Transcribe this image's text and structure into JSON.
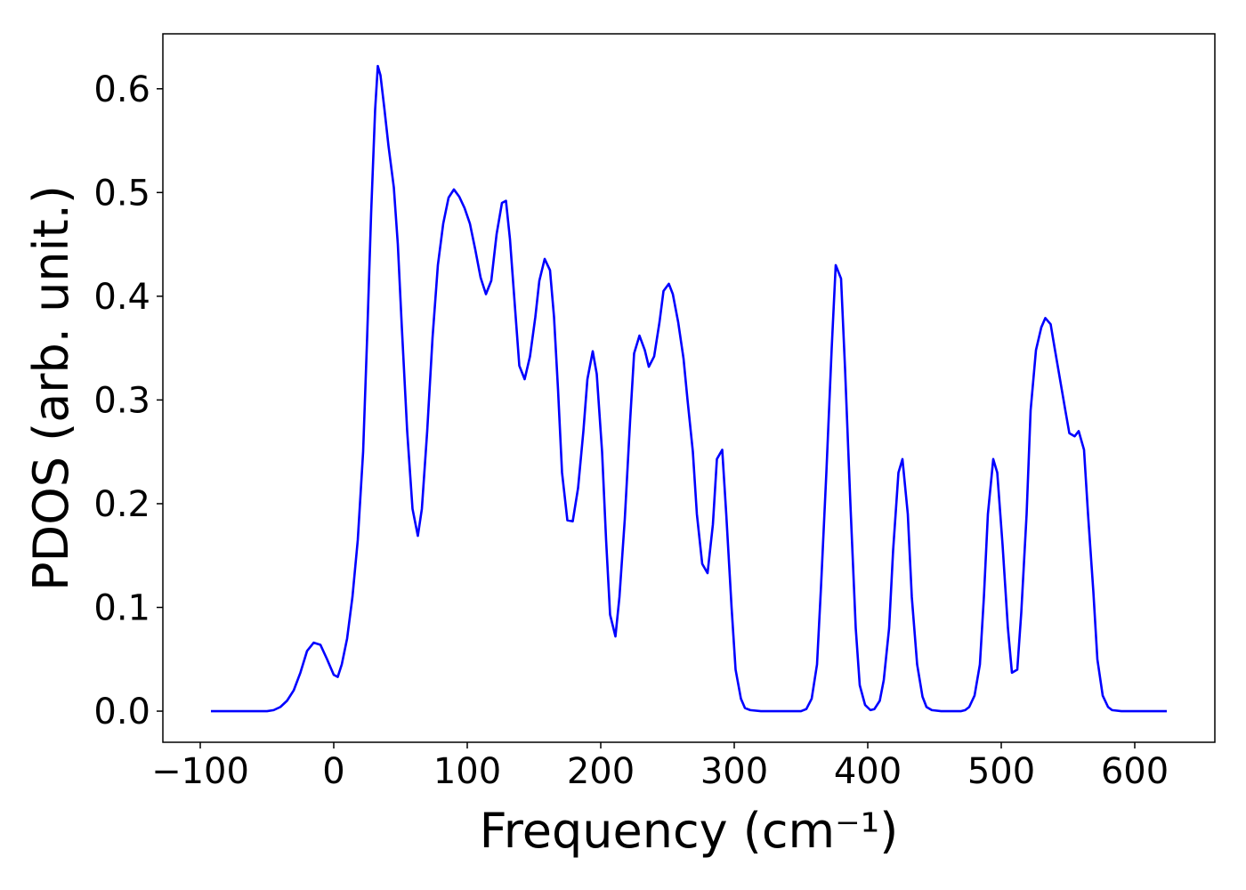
{
  "chart_data": {
    "type": "line",
    "xlabel": "Frequency (cm⁻¹)",
    "ylabel": "PDOS (arb. unit.)",
    "color": "#0000ff",
    "grid": false,
    "xlim": [
      -128,
      660
    ],
    "ylim": [
      -0.03,
      0.653
    ],
    "xticks": [
      {
        "value": -100,
        "label": "−100"
      },
      0,
      100,
      200,
      300,
      400,
      500,
      600
    ],
    "yticks": [
      {
        "value": 0,
        "label": "0.0"
      },
      0.1,
      0.2,
      0.3,
      0.4,
      0.5,
      0.6
    ],
    "x": [
      -92,
      -50,
      -45,
      -40,
      -35,
      -30,
      -25,
      -20,
      -15,
      -10,
      -5,
      0,
      3,
      6,
      10,
      14,
      18,
      22,
      25,
      28,
      31,
      33,
      35,
      38,
      41,
      45,
      48,
      51,
      55,
      59,
      63,
      66,
      70,
      74,
      78,
      82,
      86,
      90,
      94,
      98,
      102,
      106,
      110,
      114,
      118,
      122,
      126,
      129,
      132,
      136,
      139,
      143,
      147,
      151,
      154,
      158,
      162,
      165,
      168,
      171,
      175,
      179,
      183,
      187,
      190,
      194,
      197,
      201,
      204,
      207,
      211,
      214,
      218,
      222,
      225,
      229,
      233,
      236,
      240,
      244,
      247,
      251,
      254,
      258,
      262,
      265,
      269,
      272,
      276,
      280,
      284,
      287,
      291,
      294,
      298,
      301,
      305,
      308,
      312,
      320,
      350,
      354,
      358,
      362,
      365,
      369,
      373,
      376,
      380,
      383,
      387,
      391,
      394,
      398,
      402,
      405,
      409,
      412,
      416,
      419,
      423,
      426,
      430,
      433,
      437,
      441,
      444,
      448,
      455,
      470,
      473,
      476,
      480,
      484,
      487,
      490,
      494,
      497,
      501,
      505,
      508,
      512,
      515,
      519,
      522,
      526,
      530,
      533,
      537,
      540,
      544,
      548,
      551,
      555,
      558,
      562,
      565,
      569,
      572,
      576,
      580,
      583,
      590,
      624
    ],
    "values": [
      0,
      0,
      0.001,
      0.004,
      0.01,
      0.02,
      0.037,
      0.058,
      0.066,
      0.064,
      0.05,
      0.035,
      0.033,
      0.045,
      0.07,
      0.11,
      0.165,
      0.25,
      0.36,
      0.48,
      0.58,
      0.622,
      0.613,
      0.58,
      0.545,
      0.505,
      0.45,
      0.37,
      0.27,
      0.195,
      0.169,
      0.195,
      0.27,
      0.36,
      0.43,
      0.47,
      0.495,
      0.503,
      0.496,
      0.485,
      0.47,
      0.445,
      0.418,
      0.402,
      0.415,
      0.46,
      0.49,
      0.492,
      0.455,
      0.385,
      0.333,
      0.32,
      0.342,
      0.38,
      0.415,
      0.436,
      0.425,
      0.38,
      0.31,
      0.23,
      0.184,
      0.183,
      0.215,
      0.27,
      0.32,
      0.347,
      0.325,
      0.25,
      0.165,
      0.093,
      0.072,
      0.11,
      0.185,
      0.28,
      0.345,
      0.362,
      0.348,
      0.332,
      0.342,
      0.375,
      0.405,
      0.412,
      0.402,
      0.375,
      0.34,
      0.3,
      0.25,
      0.19,
      0.142,
      0.133,
      0.18,
      0.243,
      0.252,
      0.19,
      0.1,
      0.04,
      0.012,
      0.003,
      0.001,
      0,
      0,
      0.002,
      0.012,
      0.045,
      0.12,
      0.23,
      0.35,
      0.43,
      0.417,
      0.33,
      0.2,
      0.08,
      0.025,
      0.006,
      0.001,
      0.002,
      0.01,
      0.03,
      0.08,
      0.155,
      0.23,
      0.243,
      0.19,
      0.11,
      0.045,
      0.014,
      0.004,
      0.001,
      0,
      0,
      0.001,
      0.004,
      0.015,
      0.045,
      0.11,
      0.19,
      0.243,
      0.23,
      0.16,
      0.08,
      0.037,
      0.04,
      0.095,
      0.19,
      0.29,
      0.348,
      0.37,
      0.379,
      0.373,
      0.35,
      0.32,
      0.29,
      0.268,
      0.265,
      0.27,
      0.252,
      0.19,
      0.115,
      0.05,
      0.015,
      0.004,
      0.001,
      0,
      0
    ]
  }
}
